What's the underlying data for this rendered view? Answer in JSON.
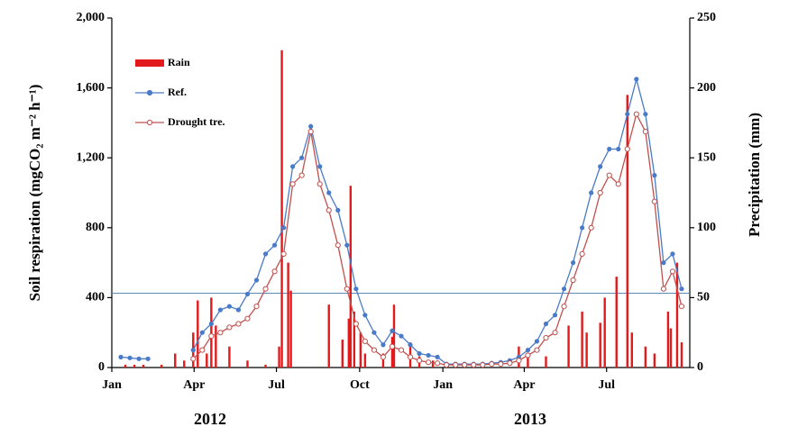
{
  "chart_data": {
    "type": "line",
    "y_label": "Soil respiration (mgCO₂ m⁻² h⁻¹)",
    "y2_label": "Precipitation (mm)",
    "annotations": [
      "2012",
      "2013"
    ],
    "xlim": [
      0,
      639
    ],
    "xticks": [
      {
        "value": 0,
        "label": "Jan"
      },
      {
        "value": 91,
        "label": "Apr"
      },
      {
        "value": 182,
        "label": "Jul"
      },
      {
        "value": 274,
        "label": "Oct"
      },
      {
        "value": 366,
        "label": "Jan"
      },
      {
        "value": 456,
        "label": "Apr"
      },
      {
        "value": 547,
        "label": "Jul"
      }
    ],
    "ylim": [
      0,
      2000
    ],
    "yticks": [
      0,
      400,
      {
        "value": 800,
        "label": "800"
      },
      {
        "value": 1200,
        "label": "1,200"
      },
      {
        "value": 1600,
        "label": "1,600"
      },
      {
        "value": 2000,
        "label": "2,000"
      }
    ],
    "y2lim": [
      0,
      250
    ],
    "y2ticks": [
      0,
      50,
      100,
      150,
      200,
      250
    ],
    "reference_line": 425,
    "x": [
      10,
      20,
      30,
      40,
      50,
      60,
      70,
      80,
      90,
      100,
      110,
      120,
      130,
      140,
      150,
      160,
      170,
      180,
      190,
      200,
      210,
      220,
      230,
      240,
      250,
      260,
      270,
      280,
      290,
      300,
      310,
      320,
      330,
      340,
      350,
      360,
      370,
      380,
      390,
      400,
      410,
      420,
      430,
      440,
      450,
      460,
      470,
      480,
      490,
      500,
      510,
      520,
      530,
      540,
      550,
      560,
      570,
      580,
      590,
      600,
      610,
      620,
      630
    ],
    "series": [
      {
        "name": "Rain",
        "type": "bar",
        "axis": "y2",
        "color": "#e31a1c",
        "x": [
          15,
          25,
          35,
          55,
          70,
          80,
          90,
          95,
          105,
          110,
          115,
          130,
          150,
          170,
          185,
          188,
          195,
          198,
          240,
          255,
          262,
          264,
          268,
          275,
          280,
          300,
          310,
          312,
          330,
          340,
          355,
          400,
          450,
          460,
          480,
          505,
          520,
          525,
          540,
          545,
          558,
          570,
          575,
          590,
          600,
          615,
          618,
          625,
          630
        ],
        "values": [
          2,
          2,
          2,
          2,
          10,
          5,
          25,
          48,
          10,
          50,
          30,
          15,
          5,
          2,
          15,
          227,
          75,
          55,
          45,
          20,
          35,
          130,
          40,
          25,
          10,
          10,
          22,
          45,
          18,
          8,
          5,
          3,
          15,
          10,
          8,
          30,
          40,
          25,
          32,
          50,
          65,
          195,
          25,
          15,
          10,
          40,
          28,
          75,
          18
        ]
      },
      {
        "name": "Ref.",
        "type": "line",
        "color": "#4a7bc8",
        "values": [
          60,
          55,
          50,
          50,
          null,
          null,
          null,
          null,
          100,
          200,
          250,
          330,
          350,
          330,
          420,
          500,
          650,
          700,
          800,
          1150,
          1200,
          1380,
          1150,
          1000,
          900,
          700,
          450,
          300,
          200,
          130,
          210,
          180,
          130,
          80,
          70,
          60,
          20,
          20,
          20,
          20,
          20,
          25,
          30,
          40,
          60,
          100,
          150,
          250,
          300,
          450,
          600,
          800,
          1000,
          1150,
          1250,
          1250,
          1450,
          1650,
          1450,
          1100,
          600,
          650,
          450
        ]
      },
      {
        "name": "Drought tre.",
        "type": "line",
        "color": "#c0504d",
        "values": [
          null,
          null,
          null,
          null,
          null,
          null,
          null,
          null,
          50,
          100,
          180,
          200,
          230,
          250,
          280,
          350,
          450,
          550,
          650,
          1050,
          1100,
          1350,
          1050,
          900,
          700,
          450,
          250,
          150,
          100,
          60,
          120,
          100,
          60,
          40,
          30,
          25,
          15,
          15,
          15,
          15,
          15,
          20,
          20,
          25,
          40,
          70,
          100,
          170,
          200,
          350,
          500,
          650,
          800,
          1000,
          1100,
          1050,
          1250,
          1450,
          1350,
          950,
          450,
          550,
          350
        ]
      }
    ]
  }
}
